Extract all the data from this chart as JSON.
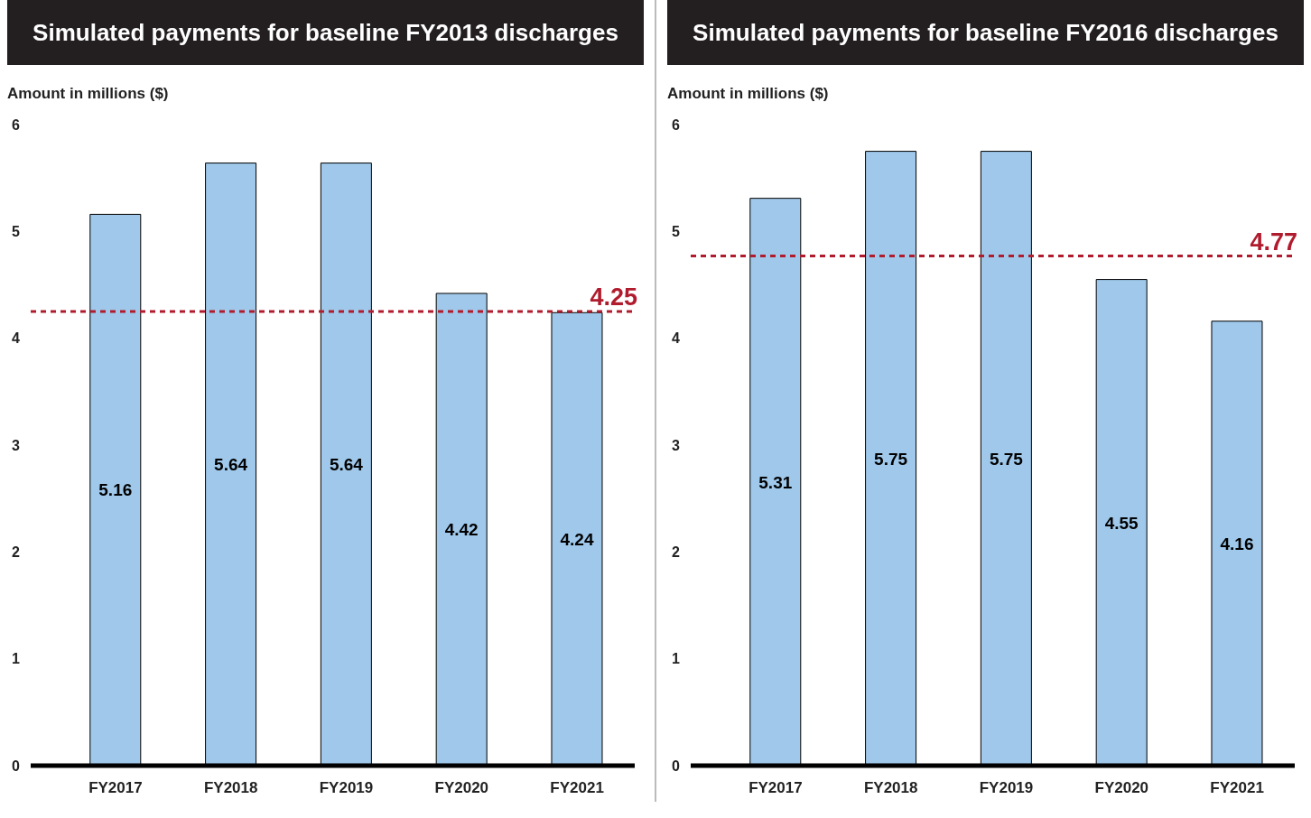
{
  "chart_data": [
    {
      "type": "bar",
      "title": "Simulated payments for baseline FY2013 discharges",
      "ylabel": "Amount in millions ($)",
      "categories": [
        "FY2017",
        "FY2018",
        "FY2019",
        "FY2020",
        "FY2021"
      ],
      "values": [
        5.16,
        5.64,
        5.64,
        4.42,
        4.24
      ],
      "color": "#9fc8ea",
      "ylim": [
        0,
        6
      ],
      "yticks": [
        0,
        1,
        2,
        3,
        4,
        5,
        6
      ],
      "grid": false,
      "data_labels": true,
      "ref_lines": [
        {
          "axis": "y",
          "value": 4.25,
          "label": "4.25",
          "color": "#b01c2e",
          "line_style": "dashed"
        }
      ]
    },
    {
      "type": "bar",
      "title": "Simulated payments for baseline FY2016 discharges",
      "ylabel": "Amount in millions ($)",
      "categories": [
        "FY2017",
        "FY2018",
        "FY2019",
        "FY2020",
        "FY2021"
      ],
      "values": [
        5.31,
        5.75,
        5.75,
        4.55,
        4.16
      ],
      "color": "#9fc8ea",
      "ylim": [
        0,
        6
      ],
      "yticks": [
        0,
        1,
        2,
        3,
        4,
        5,
        6
      ],
      "grid": false,
      "data_labels": true,
      "ref_lines": [
        {
          "axis": "y",
          "value": 4.77,
          "label": "4.77",
          "color": "#b01c2e",
          "line_style": "dashed"
        }
      ]
    }
  ]
}
